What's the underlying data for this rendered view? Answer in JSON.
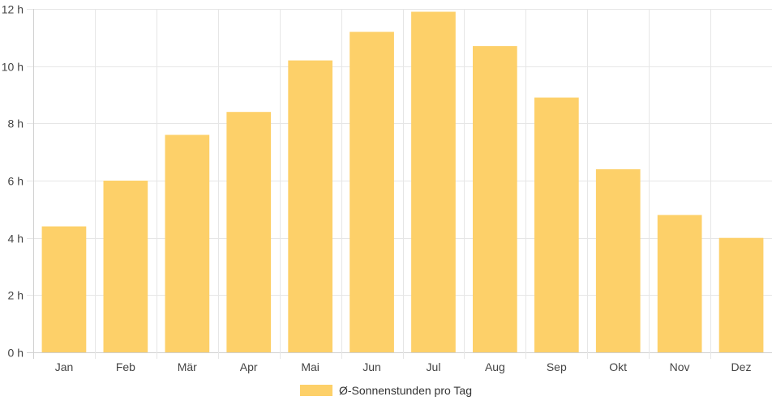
{
  "chart_data": {
    "type": "bar",
    "categories": [
      "Jan",
      "Feb",
      "Mär",
      "Apr",
      "Mai",
      "Jun",
      "Jul",
      "Aug",
      "Sep",
      "Okt",
      "Nov",
      "Dez"
    ],
    "series": [
      {
        "name": "Ø-Sonnenstunden pro Tag",
        "values": [
          4.4,
          6.0,
          7.6,
          8.4,
          10.2,
          11.2,
          11.9,
          10.7,
          8.9,
          6.4,
          4.8,
          4.0
        ],
        "color": "#fdd069"
      }
    ],
    "ylim": [
      0,
      12
    ],
    "y_ticks": [
      0,
      2,
      4,
      6,
      8,
      10,
      12
    ],
    "y_tick_suffix": " h",
    "grid": true,
    "legend_position": "bottom"
  }
}
